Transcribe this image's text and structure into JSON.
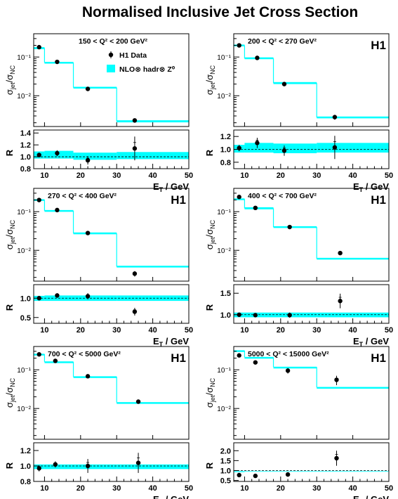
{
  "page": {
    "title": "Normalised Inclusive Jet Cross Section",
    "h1_tag": "H1",
    "y_label_top": "σjet/σNC",
    "y_label_ratio": "R",
    "x_label": "ET / GeV",
    "legend_data": "H1 Data",
    "legend_theory": "NLO⊗ hadr⊗ Z⁰"
  },
  "colors": {
    "band": "#00ffff",
    "data": "#000000",
    "reference": "#000000"
  },
  "chart_data": [
    {
      "type": "scatter",
      "title": "150 < Q² < 200 GeV²",
      "show_h1": false,
      "legend": [
        "H1 Data",
        "NLO⊗ hadr⊗ Z⁰"
      ],
      "xlabel": "ET / GeV",
      "ylabel": "σjet/σNC",
      "xlim": [
        7,
        50
      ],
      "ylim_log": [
        0.0016,
        0.4
      ],
      "x_ticks": [
        10,
        20,
        30,
        40,
        50
      ],
      "y_ticks": [
        {
          "v": 0.1,
          "label": "10⁻¹"
        },
        {
          "v": 0.01,
          "label": "10⁻²"
        }
      ],
      "bins": [
        [
          7,
          10
        ],
        [
          10,
          18
        ],
        [
          18,
          30
        ],
        [
          30,
          50
        ]
      ],
      "theory": [
        [
          0.16,
          0.18
        ],
        [
          0.068,
          0.075
        ],
        [
          0.0155,
          0.017
        ],
        [
          0.00205,
          0.00232
        ]
      ],
      "data": [
        {
          "x": 8.5,
          "y": 0.18,
          "err": 0.01
        },
        {
          "x": 13.5,
          "y": 0.075,
          "err": 0.004
        },
        {
          "x": 22,
          "y": 0.015,
          "err": 0.001
        },
        {
          "x": 35,
          "y": 0.0023,
          "err": 0.0003
        }
      ],
      "ratio": {
        "ylabel": "R",
        "ylim": [
          0.8,
          1.45
        ],
        "ticks": [
          {
            "v": 0.8,
            "label": "0.8"
          },
          {
            "v": 1.0,
            "label": "1.0"
          },
          {
            "v": 1.2,
            "label": "1.2"
          },
          {
            "v": 1.4,
            "label": "1.4"
          }
        ],
        "band": [
          [
            0.97,
            1.09
          ],
          [
            0.97,
            1.1
          ],
          [
            0.95,
            1.07
          ],
          [
            0.96,
            1.08
          ]
        ],
        "points": [
          {
            "x": 8.5,
            "y": 1.03,
            "err": 0.04
          },
          {
            "x": 13.5,
            "y": 1.06,
            "err": 0.05
          },
          {
            "x": 22,
            "y": 0.94,
            "err": 0.07
          },
          {
            "x": 35,
            "y": 1.14,
            "err": 0.2
          }
        ]
      }
    },
    {
      "type": "scatter",
      "title": "200 < Q² < 270 GeV²",
      "show_h1": true,
      "legend": [],
      "xlabel": "ET / GeV",
      "ylabel": "σjet/σNC",
      "xlim": [
        7,
        50
      ],
      "ylim_log": [
        0.0016,
        0.4
      ],
      "x_ticks": [
        10,
        20,
        30,
        40,
        50
      ],
      "y_ticks": [
        {
          "v": 0.1,
          "label": "10⁻¹"
        },
        {
          "v": 0.01,
          "label": "10⁻²"
        }
      ],
      "bins": [
        [
          7,
          10
        ],
        [
          10,
          18
        ],
        [
          18,
          30
        ],
        [
          30,
          50
        ]
      ],
      "theory": [
        [
          0.19,
          0.21
        ],
        [
          0.088,
          0.098
        ],
        [
          0.02,
          0.0225
        ],
        [
          0.0026,
          0.0029
        ]
      ],
      "data": [
        {
          "x": 8.5,
          "y": 0.2,
          "err": 0.01
        },
        {
          "x": 13.5,
          "y": 0.095,
          "err": 0.005
        },
        {
          "x": 21,
          "y": 0.02,
          "err": 0.001
        },
        {
          "x": 35,
          "y": 0.0028,
          "err": 0.0004
        }
      ],
      "ratio": {
        "ylabel": "R",
        "ylim": [
          0.7,
          1.3
        ],
        "ticks": [
          {
            "v": 0.8,
            "label": "0.8"
          },
          {
            "v": 1.0,
            "label": "1.0"
          },
          {
            "v": 1.2,
            "label": "1.2"
          }
        ],
        "band": [
          [
            0.95,
            1.07
          ],
          [
            0.95,
            1.1
          ],
          [
            0.94,
            1.09
          ],
          [
            0.95,
            1.1
          ]
        ],
        "points": [
          {
            "x": 8.5,
            "y": 1.02,
            "err": 0.05
          },
          {
            "x": 13.5,
            "y": 1.1,
            "err": 0.08
          },
          {
            "x": 21,
            "y": 0.98,
            "err": 0.08
          },
          {
            "x": 35,
            "y": 1.03,
            "err": 0.18
          }
        ]
      }
    },
    {
      "type": "scatter",
      "title": "270 < Q² < 400 GeV²",
      "show_h1": true,
      "legend": [],
      "xlabel": "ET / GeV",
      "ylabel": "σjet/σNC",
      "xlim": [
        7,
        50
      ],
      "ylim_log": [
        0.0016,
        0.4
      ],
      "x_ticks": [
        10,
        20,
        30,
        40,
        50
      ],
      "y_ticks": [
        {
          "v": 0.1,
          "label": "10⁻¹"
        },
        {
          "v": 0.01,
          "label": "10⁻²"
        }
      ],
      "bins": [
        [
          7,
          10
        ],
        [
          10,
          18
        ],
        [
          18,
          30
        ],
        [
          30,
          50
        ]
      ],
      "theory": [
        [
          0.19,
          0.21
        ],
        [
          0.1,
          0.11
        ],
        [
          0.026,
          0.029
        ],
        [
          0.0036,
          0.004
        ]
      ],
      "data": [
        {
          "x": 8.5,
          "y": 0.2,
          "err": 0.01
        },
        {
          "x": 13.5,
          "y": 0.11,
          "err": 0.006
        },
        {
          "x": 22,
          "y": 0.028,
          "err": 0.0015
        },
        {
          "x": 35,
          "y": 0.0025,
          "err": 0.0004
        }
      ],
      "ratio": {
        "ylabel": "R",
        "ylim": [
          0.35,
          1.35
        ],
        "ticks": [
          {
            "v": 0.5,
            "label": "0.5"
          },
          {
            "v": 1.0,
            "label": "1.0"
          }
        ],
        "band": [
          [
            0.93,
            1.06
          ],
          [
            0.93,
            1.07
          ],
          [
            0.93,
            1.07
          ],
          [
            0.93,
            1.07
          ]
        ],
        "points": [
          {
            "x": 8.5,
            "y": 1.0,
            "err": 0.04
          },
          {
            "x": 13.5,
            "y": 1.07,
            "err": 0.06
          },
          {
            "x": 22,
            "y": 1.05,
            "err": 0.08
          },
          {
            "x": 35,
            "y": 0.65,
            "err": 0.1
          }
        ]
      }
    },
    {
      "type": "scatter",
      "title": "400 < Q² < 700 GeV²",
      "show_h1": true,
      "legend": [],
      "xlabel": "ET / GeV",
      "ylabel": "σjet/σNC",
      "xlim": [
        7,
        50
      ],
      "ylim_log": [
        0.0016,
        0.4
      ],
      "x_ticks": [
        10,
        20,
        30,
        40,
        50
      ],
      "y_ticks": [
        {
          "v": 0.1,
          "label": "10⁻¹"
        },
        {
          "v": 0.01,
          "label": "10⁻²"
        }
      ],
      "bins": [
        [
          7,
          10
        ],
        [
          10,
          18
        ],
        [
          18,
          30
        ],
        [
          30,
          50
        ]
      ],
      "theory": [
        [
          0.2,
          0.22
        ],
        [
          0.115,
          0.13
        ],
        [
          0.038,
          0.042
        ],
        [
          0.0058,
          0.0064
        ]
      ],
      "data": [
        {
          "x": 8.5,
          "y": 0.24,
          "err": 0.01
        },
        {
          "x": 13,
          "y": 0.125,
          "err": 0.006
        },
        {
          "x": 22.5,
          "y": 0.04,
          "err": 0.002
        },
        {
          "x": 36.5,
          "y": 0.0085,
          "err": 0.001
        }
      ],
      "ratio": {
        "ylabel": "R",
        "ylim": [
          0.8,
          1.7
        ],
        "ticks": [
          {
            "v": 1.0,
            "label": "1.0"
          },
          {
            "v": 1.5,
            "label": "1.5"
          }
        ],
        "band": [
          [
            0.94,
            1.05
          ],
          [
            0.94,
            1.05
          ],
          [
            0.94,
            1.05
          ],
          [
            0.94,
            1.05
          ]
        ],
        "points": [
          {
            "x": 8.5,
            "y": 1.0,
            "err": 0.03
          },
          {
            "x": 13,
            "y": 0.99,
            "err": 0.04
          },
          {
            "x": 22.5,
            "y": 0.99,
            "err": 0.06
          },
          {
            "x": 36.5,
            "y": 1.32,
            "err": 0.17
          }
        ]
      }
    },
    {
      "type": "scatter",
      "title": "700 < Q² < 5000 GeV²",
      "show_h1": true,
      "legend": [],
      "xlabel": "ET / GeV",
      "ylabel": "σjet/σNC",
      "xlim": [
        7,
        50
      ],
      "ylim_log": [
        0.0016,
        0.4
      ],
      "x_ticks": [
        10,
        20,
        30,
        40,
        50
      ],
      "y_ticks": [
        {
          "v": 0.1,
          "label": "10⁻¹"
        },
        {
          "v": 0.01,
          "label": "10⁻²"
        }
      ],
      "bins": [
        [
          7,
          10
        ],
        [
          10,
          18
        ],
        [
          18,
          30
        ],
        [
          30,
          50
        ]
      ],
      "theory": [
        [
          0.245,
          0.26
        ],
        [
          0.155,
          0.165
        ],
        [
          0.064,
          0.068
        ],
        [
          0.0138,
          0.0146
        ]
      ],
      "data": [
        {
          "x": 8.5,
          "y": 0.25,
          "err": 0.01
        },
        {
          "x": 13,
          "y": 0.17,
          "err": 0.007
        },
        {
          "x": 22,
          "y": 0.068,
          "err": 0.004
        },
        {
          "x": 36,
          "y": 0.015,
          "err": 0.001
        }
      ],
      "ratio": {
        "ylabel": "R",
        "ylim": [
          0.8,
          1.3
        ],
        "ticks": [
          {
            "v": 0.8,
            "label": "0.8"
          },
          {
            "v": 1.0,
            "label": "1.0"
          },
          {
            "v": 1.2,
            "label": "1.2"
          }
        ],
        "band": [
          [
            0.96,
            1.02
          ],
          [
            0.96,
            1.02
          ],
          [
            0.96,
            1.02
          ],
          [
            0.96,
            1.02
          ]
        ],
        "points": [
          {
            "x": 8.5,
            "y": 0.97,
            "err": 0.04
          },
          {
            "x": 13,
            "y": 1.02,
            "err": 0.04
          },
          {
            "x": 22,
            "y": 1.0,
            "err": 0.09
          },
          {
            "x": 36,
            "y": 1.04,
            "err": 0.13
          }
        ]
      }
    },
    {
      "type": "scatter",
      "title": "5000 < Q² < 15000 GeV²",
      "show_h1": true,
      "legend": [],
      "xlabel": "ET / GeV",
      "ylabel": "σjet/σNC",
      "xlim": [
        7,
        50
      ],
      "ylim_log": [
        0.0016,
        0.4
      ],
      "x_ticks": [
        10,
        20,
        30,
        40,
        50
      ],
      "y_ticks": [
        {
          "v": 0.1,
          "label": "10⁻¹"
        },
        {
          "v": 0.01,
          "label": "10⁻²"
        }
      ],
      "bins": [
        [
          7,
          10
        ],
        [
          10,
          18
        ],
        [
          18,
          30
        ],
        [
          30,
          50
        ]
      ],
      "theory": [
        [
          0.3,
          0.32
        ],
        [
          0.205,
          0.215
        ],
        [
          0.115,
          0.12
        ],
        [
          0.034,
          0.036
        ]
      ],
      "data": [
        {
          "x": 8.5,
          "y": 0.235,
          "err": 0.02
        },
        {
          "x": 13,
          "y": 0.155,
          "err": 0.015
        },
        {
          "x": 22,
          "y": 0.095,
          "err": 0.015
        },
        {
          "x": 35.5,
          "y": 0.055,
          "err": 0.015
        }
      ],
      "ratio": {
        "ylabel": "R",
        "ylim": [
          0.45,
          2.4
        ],
        "ticks": [
          {
            "v": 0.5,
            "label": "0.5"
          },
          {
            "v": 1.0,
            "label": "1.0"
          },
          {
            "v": 1.5,
            "label": "1.5"
          },
          {
            "v": 2.0,
            "label": "2.0"
          }
        ],
        "band": [
          [
            0.92,
            0.97
          ],
          [
            0.94,
            0.97
          ],
          [
            0.94,
            0.97
          ],
          [
            0.94,
            0.97
          ]
        ],
        "points": [
          {
            "x": 8.5,
            "y": 0.77,
            "err": 0.07
          },
          {
            "x": 13,
            "y": 0.73,
            "err": 0.06
          },
          {
            "x": 22,
            "y": 0.8,
            "err": 0.1
          },
          {
            "x": 35.5,
            "y": 1.62,
            "err": 0.38
          }
        ]
      }
    }
  ]
}
